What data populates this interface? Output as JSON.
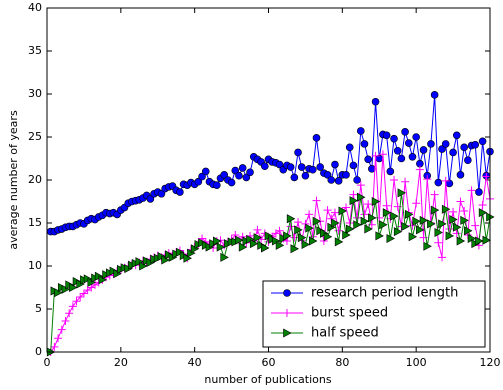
{
  "chart_data": {
    "type": "line",
    "xlabel": "number of publications",
    "ylabel": "average number of years",
    "x": [
      1,
      2,
      3,
      4,
      5,
      6,
      7,
      8,
      9,
      10,
      11,
      12,
      13,
      14,
      15,
      16,
      17,
      18,
      19,
      20,
      21,
      22,
      23,
      24,
      25,
      26,
      27,
      28,
      29,
      30,
      31,
      32,
      33,
      34,
      35,
      36,
      37,
      38,
      39,
      40,
      41,
      42,
      43,
      44,
      45,
      46,
      47,
      48,
      49,
      50,
      51,
      52,
      53,
      54,
      55,
      56,
      57,
      58,
      59,
      60,
      61,
      62,
      63,
      64,
      65,
      66,
      67,
      68,
      69,
      70,
      71,
      72,
      73,
      74,
      75,
      76,
      77,
      78,
      79,
      80,
      81,
      82,
      83,
      84,
      85,
      86,
      87,
      88,
      89,
      90,
      91,
      92,
      93,
      94,
      95,
      96,
      97,
      98,
      99,
      100,
      101,
      102,
      103,
      104,
      105,
      106,
      107,
      108,
      109,
      110,
      111,
      112,
      113,
      114,
      115,
      116,
      117,
      118,
      119,
      120
    ],
    "series": [
      {
        "name": "research period length",
        "color": "#0000ff",
        "marker": "circle",
        "values": [
          14.0,
          14.0,
          14.2,
          14.3,
          14.5,
          14.6,
          14.6,
          14.8,
          15.0,
          14.9,
          15.3,
          15.5,
          15.4,
          15.7,
          15.9,
          16.2,
          16.1,
          16.2,
          16.0,
          16.5,
          16.8,
          17.3,
          17.5,
          17.6,
          17.7,
          17.9,
          18.2,
          17.8,
          18.4,
          18.6,
          18.4,
          19.0,
          19.2,
          19.3,
          18.8,
          18.6,
          19.5,
          19.4,
          19.7,
          19.5,
          19.8,
          20.4,
          21.0,
          19.8,
          19.5,
          19.4,
          20.2,
          20.6,
          20.0,
          19.7,
          21.1,
          20.5,
          21.4,
          20.3,
          20.9,
          22.7,
          22.4,
          22.1,
          21.6,
          22.4,
          22.1,
          22.0,
          21.8,
          21.2,
          21.7,
          21.5,
          20.3,
          23.2,
          21.5,
          20.5,
          21.3,
          21.2,
          24.9,
          21.5,
          20.8,
          20.6,
          20.0,
          21.8,
          19.9,
          20.6,
          20.6,
          23.8,
          21.7,
          20.0,
          25.7,
          24.2,
          22.4,
          21.3,
          29.1,
          22.5,
          25.3,
          25.2,
          21.0,
          24.8,
          23.4,
          22.5,
          25.6,
          24.3,
          22.7,
          25.0,
          21.9,
          23.5,
          20.5,
          24.2,
          29.9,
          19.7,
          23.6,
          24.2,
          19.6,
          23.2,
          25.2,
          20.6,
          23.8,
          22.3,
          24.0,
          24.1,
          18.6,
          24.5,
          20.5,
          23.3
        ]
      },
      {
        "name": "burst speed",
        "color": "#ff00ff",
        "marker": "plus",
        "values": [
          0,
          0.6,
          1.6,
          2.6,
          3.6,
          4.5,
          5.3,
          5.9,
          6.4,
          6.8,
          7.2,
          7.5,
          7.8,
          8.1,
          8.4,
          8.7,
          8.9,
          9.1,
          9.4,
          9.6,
          9.8,
          10.0,
          10.2,
          10.1,
          10.4,
          10.6,
          10.5,
          10.8,
          11.0,
          11.2,
          11.0,
          11.3,
          11.5,
          11.2,
          11.6,
          11.8,
          11.4,
          10.9,
          11.9,
          12.2,
          12.6,
          13.2,
          12.8,
          12.5,
          12.1,
          12.9,
          13.0,
          12.4,
          12.8,
          13.1,
          13.6,
          13.0,
          13.4,
          12.7,
          13.5,
          12.9,
          14.2,
          13.1,
          13.8,
          12.8,
          13.4,
          13.8,
          14.1,
          13.2,
          12.9,
          14.6,
          13.3,
          15.1,
          13.0,
          14.9,
          16.0,
          13.4,
          17.6,
          15.2,
          12.9,
          16.5,
          15.5,
          16.2,
          14.1,
          16.4,
          16.8,
          15.0,
          18.3,
          15.6,
          19.4,
          16.0,
          17.2,
          14.8,
          22.8,
          15.6,
          23.0,
          17.0,
          15.5,
          20.0,
          16.9,
          14.6,
          19.8,
          16.2,
          14.7,
          17.3,
          21.2,
          13.3,
          20.1,
          15.0,
          18.3,
          12.7,
          11.0,
          19.9,
          14.3,
          16.3,
          13.8,
          17.5,
          16.4,
          13.6,
          18.8,
          14.7,
          12.4,
          17.1,
          20.4,
          17.8
        ]
      },
      {
        "name": "half speed",
        "color": "#008000",
        "marker": "triangle-right",
        "values": [
          0,
          7.1,
          6.9,
          7.5,
          7.3,
          7.8,
          7.5,
          8.2,
          7.9,
          8.4,
          8.5,
          8.1,
          8.6,
          8.8,
          8.4,
          9.0,
          9.2,
          9.4,
          9.1,
          9.6,
          9.8,
          9.7,
          10.1,
          10.3,
          10.5,
          10.0,
          10.6,
          10.4,
          10.8,
          10.9,
          11.1,
          10.7,
          11.3,
          11.0,
          11.4,
          11.6,
          11.2,
          10.9,
          11.5,
          12.0,
          12.5,
          12.7,
          12.4,
          12.2,
          12.6,
          12.9,
          12.2,
          11.0,
          12.6,
          12.8,
          12.8,
          13.0,
          12.2,
          12.9,
          13.1,
          12.6,
          13.3,
          12.4,
          12.1,
          13.5,
          13.1,
          12.9,
          12.4,
          13.2,
          13.5,
          15.5,
          12.0,
          14.2,
          13.3,
          12.5,
          14.4,
          12.9,
          15.2,
          14.1,
          13.8,
          13.4,
          14.5,
          15.0,
          12.8,
          16.4,
          13.6,
          14.3,
          17.6,
          14.8,
          18.0,
          15.2,
          14.3,
          15.6,
          17.5,
          13.5,
          14.8,
          16.2,
          13.2,
          15.8,
          14.0,
          18.5,
          14.6,
          16.0,
          13.4,
          15.2,
          14.2,
          15.3,
          12.3,
          14.9,
          16.5,
          13.9,
          14.9,
          16.6,
          13.5,
          15.4,
          14.5,
          12.9,
          15.3,
          14.1,
          13.2,
          12.6,
          12.9,
          16.2,
          13.0,
          15.7
        ]
      }
    ],
    "xlim": [
      0,
      120
    ],
    "xticks": [
      0,
      20,
      40,
      60,
      80,
      100,
      120
    ],
    "ylim": [
      0,
      40
    ],
    "yticks": [
      0,
      5,
      10,
      15,
      20,
      25,
      30,
      35,
      40
    ],
    "legend": "lower right"
  }
}
